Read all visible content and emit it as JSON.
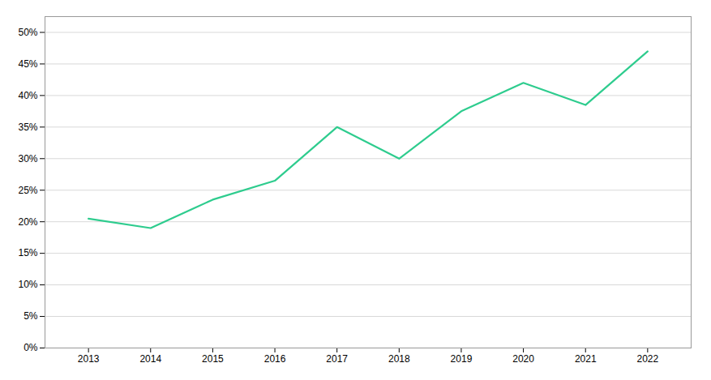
{
  "chart_data": {
    "type": "line",
    "x": [
      2013,
      2014,
      2015,
      2016,
      2017,
      2018,
      2019,
      2020,
      2021,
      2022
    ],
    "values": [
      0.205,
      0.19,
      0.235,
      0.265,
      0.35,
      0.3,
      0.375,
      0.42,
      0.385,
      0.47
    ],
    "color": "#2ecc8e",
    "xlim": [
      2012.3,
      2022.7
    ],
    "xticks": [
      2013,
      2014,
      2015,
      2016,
      2017,
      2018,
      2019,
      2020,
      2021,
      2022
    ],
    "ylim": [
      0.0,
      0.525
    ],
    "yticks": [
      {
        "value": 0.0,
        "label": "0%"
      },
      {
        "value": 0.05,
        "label": "5%"
      },
      {
        "value": 0.1,
        "label": "10%"
      },
      {
        "value": 0.15,
        "label": "15%"
      },
      {
        "value": 0.2,
        "label": "20%"
      },
      {
        "value": 0.25,
        "label": "25%"
      },
      {
        "value": 0.3,
        "label": "30%"
      },
      {
        "value": 0.35,
        "label": "35%"
      },
      {
        "value": 0.4,
        "label": "40%"
      },
      {
        "value": 0.45,
        "label": "45%"
      },
      {
        "value": 0.5,
        "label": "50%"
      }
    ],
    "grid": true
  }
}
